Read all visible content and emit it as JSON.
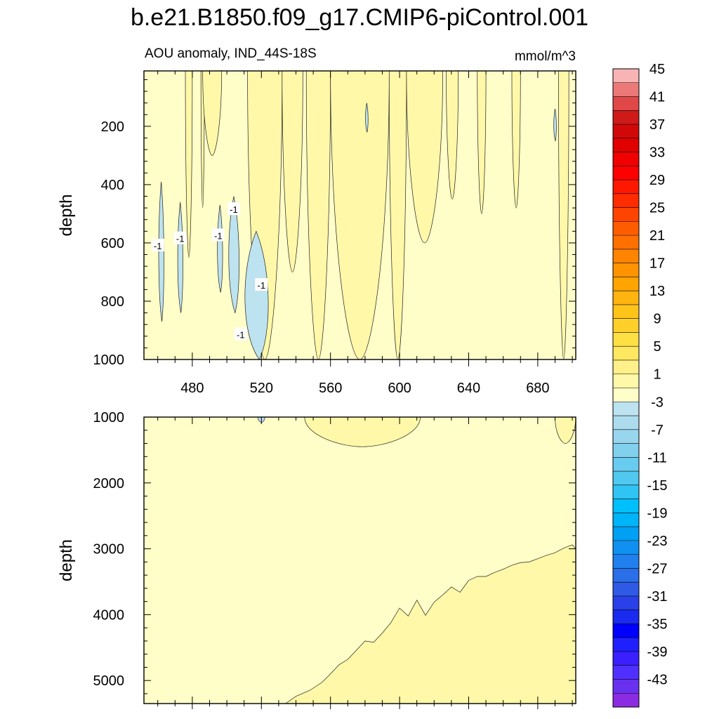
{
  "title": "b.e21.B1850.f09_g17.CMIP6-piControl.001",
  "subtitle_left": "AOU anomaly, IND_44S-18S",
  "subtitle_right": "mmol/m^3",
  "chart_data": {
    "type": "contour",
    "variable": "AOU anomaly",
    "region": "IND_44S-18S",
    "units": "mmol/m^3",
    "x_axis": {
      "label": "",
      "range": [
        452,
        702
      ],
      "ticks": [
        480,
        520,
        560,
        600,
        640,
        680
      ]
    },
    "panels": [
      {
        "name": "upper",
        "ylabel": "depth",
        "yrange": [
          10,
          1000
        ],
        "yticks": [
          200,
          400,
          600,
          800,
          1000
        ],
        "contour_labels": [
          {
            "text": "-1",
            "x": 460,
            "y": 610
          },
          {
            "text": "-1",
            "x": 473,
            "y": 585
          },
          {
            "text": "-1",
            "x": 495,
            "y": 575
          },
          {
            "text": "-1",
            "x": 504,
            "y": 485
          },
          {
            "text": "-1",
            "x": 520,
            "y": 745
          },
          {
            "text": "-1",
            "x": 508,
            "y": 915
          }
        ],
        "regions": [
          {
            "x0": 476,
            "x1": 480,
            "level": 1,
            "ybot": 650
          },
          {
            "x0": 485,
            "x1": 487,
            "level": 1,
            "ybot": 480
          },
          {
            "x0": 486,
            "x1": 497,
            "level": 1,
            "ybot": 300
          },
          {
            "x0": 512,
            "x1": 532,
            "level": 1,
            "ybot": 1000
          },
          {
            "x0": 532,
            "x1": 544,
            "level": 1,
            "ybot": 700
          },
          {
            "x0": 546,
            "x1": 560,
            "level": 1,
            "ybot": 1000
          },
          {
            "x0": 560,
            "x1": 594,
            "level": 1,
            "ybot": 1000
          },
          {
            "x0": 594,
            "x1": 604,
            "level": 1,
            "ybot": 1000
          },
          {
            "x0": 604,
            "x1": 625,
            "level": 1,
            "ybot": 600
          },
          {
            "x0": 627,
            "x1": 634,
            "level": 1,
            "ybot": 450
          },
          {
            "x0": 645,
            "x1": 650,
            "level": 1,
            "ybot": 500
          },
          {
            "x0": 665,
            "x1": 670,
            "level": 1,
            "ybot": 480
          },
          {
            "x0": 692,
            "x1": 698,
            "level": 1,
            "ybot": 1000
          },
          {
            "x0": 460,
            "x1": 464,
            "level": -1,
            "ytop": 390,
            "ybot": 870
          },
          {
            "x0": 471,
            "x1": 475,
            "level": -1,
            "ytop": 460,
            "ybot": 840
          },
          {
            "x0": 494,
            "x1": 498,
            "level": -1,
            "ytop": 470,
            "ybot": 770
          },
          {
            "x0": 500,
            "x1": 508,
            "level": -1,
            "ytop": 440,
            "ybot": 840
          },
          {
            "x0": 508,
            "x1": 526,
            "level": -1,
            "ytop": 560,
            "ybot": 1000
          },
          {
            "x0": 580,
            "x1": 582,
            "level": -1,
            "ytop": 120,
            "ybot": 220
          },
          {
            "x0": 689,
            "x1": 691,
            "level": -1,
            "ytop": 140,
            "ybot": 250
          }
        ]
      },
      {
        "name": "lower",
        "ylabel": "depth",
        "yrange": [
          1000,
          5350
        ],
        "yticks": [
          1000,
          2000,
          3000,
          4000,
          5000
        ],
        "regions": [
          {
            "x0": 545,
            "x1": 612,
            "level": 1,
            "ytop": 1000,
            "ybot": 1450
          },
          {
            "x0": 690,
            "x1": 702,
            "level": 1,
            "ytop": 1000,
            "ybot": 1400
          },
          {
            "x0": 518,
            "x1": 522,
            "level": -1,
            "ytop": 1000,
            "ybot": 1080
          }
        ],
        "deep_boundary": {
          "level": 1,
          "x": [
            534,
            540,
            548,
            555,
            560,
            565,
            570,
            575,
            580,
            585,
            590,
            595,
            600,
            605,
            610,
            615,
            620,
            625,
            630,
            635,
            640,
            645,
            650,
            655,
            660,
            665,
            670,
            675,
            680,
            685,
            690,
            695,
            700,
            702
          ],
          "depth": [
            5350,
            5240,
            5150,
            5030,
            4900,
            4760,
            4680,
            4540,
            4400,
            4420,
            4280,
            4120,
            3900,
            4020,
            3780,
            4010,
            3810,
            3700,
            3580,
            3660,
            3480,
            3420,
            3420,
            3360,
            3310,
            3250,
            3210,
            3200,
            3150,
            3100,
            3060,
            2990,
            2940,
            3000
          ]
        }
      }
    ],
    "colorbar": {
      "levels": [
        -45,
        -43,
        -41,
        -39,
        -37,
        -35,
        -33,
        -31,
        -29,
        -27,
        -25,
        -23,
        -21,
        -19,
        -17,
        -15,
        -13,
        -11,
        -9,
        -7,
        -5,
        -3,
        -1,
        1,
        3,
        5,
        7,
        9,
        11,
        13,
        15,
        17,
        19,
        21,
        23,
        25,
        27,
        29,
        31,
        33,
        35,
        37,
        39,
        41,
        43,
        45
      ],
      "labels": [
        "45",
        "41",
        "37",
        "33",
        "29",
        "25",
        "21",
        "17",
        "13",
        "9",
        "5",
        "1",
        "-3",
        "-7",
        "-11",
        "-15",
        "-19",
        "-23",
        "-27",
        "-31",
        "-35",
        "-39",
        "-43"
      ],
      "colors": [
        "#8b2be2",
        "#6a30f0",
        "#5030ff",
        "#3a20ff",
        "#2020ff",
        "#0000ff",
        "#1a2aee",
        "#2a40e8",
        "#2e5ae6",
        "#2a6ee8",
        "#2080ee",
        "#1090f0",
        "#00a0f4",
        "#00b4f8",
        "#00c0fc",
        "#30c4f4",
        "#50c8f0",
        "#68ccf0",
        "#80d0ee",
        "#98d6ee",
        "#aedcef",
        "#bde2f0",
        "#fffdc8",
        "#fff8a8",
        "#fff08a",
        "#ffe860",
        "#ffe044",
        "#ffd02a",
        "#ffc41a",
        "#ffb410",
        "#ffa400",
        "#ff9400",
        "#ff8400",
        "#ff7000",
        "#ff5c00",
        "#ff4400",
        "#ff2c00",
        "#ff1800",
        "#ff0000",
        "#f00000",
        "#e00000",
        "#d20808",
        "#cf1a1a",
        "#e04848",
        "#ec7878",
        "#f8b4b4"
      ]
    }
  }
}
